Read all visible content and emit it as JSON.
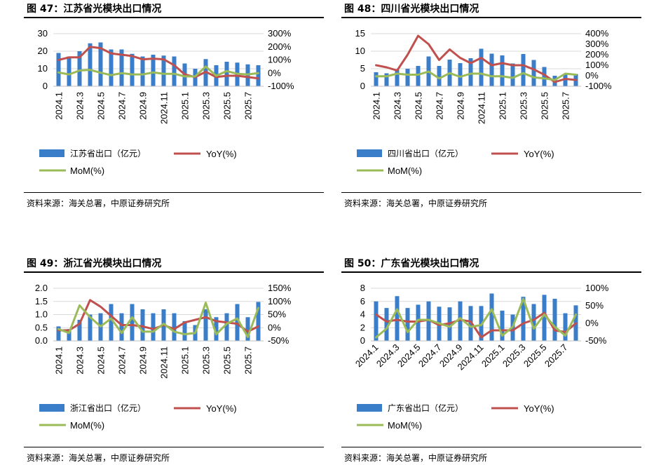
{
  "colors": {
    "bar": "#3a7dc9",
    "yoy": "#c0504d",
    "mom": "#9bbb59"
  },
  "panels": [
    {
      "title": "图 47：江苏省光模块出口情况",
      "source": "资料来源：海关总署，中原证券研究所",
      "legend": {
        "bar": "江苏省出口（亿元）",
        "yoy": "YoY(%)",
        "mom": "MoM(%)"
      }
    },
    {
      "title": "图 48：四川省光模块出口情况",
      "source": "资料来源：海关总署，中原证券研究所",
      "legend": {
        "bar": "四川省出口（亿元）",
        "yoy": "YoY(%)",
        "mom": "MoM(%)"
      }
    },
    {
      "title": "图 49：浙江省光模块出口情况",
      "source": "资料来源：海关总署，中原证券研究所",
      "legend": {
        "bar": "浙江省出口（亿元）",
        "yoy": "YoY(%)",
        "mom": "MoM(%)"
      }
    },
    {
      "title": "图 50：广东省光模块出口情况",
      "source": "资料来源：海关总署，中原证券研究所",
      "legend": {
        "bar": "广东省出口（亿元）",
        "yoy": "YoY(%)",
        "mom": "MoM(%)"
      }
    }
  ],
  "chart_data": [
    {
      "type": "bar+line",
      "title": "图 47：江苏省光模块出口情况",
      "categories": [
        "2024.1",
        "2024.2",
        "2024.3",
        "2024.4",
        "2024.5",
        "2024.6",
        "2024.7",
        "2024.8",
        "2024.9",
        "2024.10",
        "2024.11",
        "2024.12",
        "2025.1",
        "2025.2",
        "2025.3",
        "2025.4",
        "2025.5",
        "2025.6",
        "2025.7",
        "2025.8"
      ],
      "tick_labels": [
        "2024.1",
        "2024.3",
        "2024.5",
        "2024.7",
        "2024.9",
        "2024.11",
        "2025.1",
        "2025.3",
        "2025.5",
        "2025.7"
      ],
      "tick_rotation": -90,
      "left_axis": {
        "ticks": [
          "0",
          "10",
          "20",
          "30"
        ],
        "range": [
          0,
          30
        ]
      },
      "right_axis": {
        "ticks": [
          "-100%",
          "0%",
          "100%",
          "200%",
          "300%"
        ],
        "range": [
          -100,
          300
        ]
      },
      "series": [
        {
          "name": "江苏省出口（亿元）",
          "kind": "bar",
          "axis": "left",
          "values": [
            19,
            17,
            20,
            24.5,
            25,
            21,
            21,
            18.5,
            17,
            18,
            17.5,
            17,
            13,
            10,
            15.5,
            12,
            14,
            13.5,
            12.5,
            12
          ]
        },
        {
          "name": "YoY(%)",
          "kind": "line",
          "axis": "right",
          "values": [
            100,
            120,
            120,
            200,
            190,
            150,
            140,
            130,
            105,
            110,
            105,
            60,
            -10,
            -30,
            10,
            -30,
            -20,
            -20,
            -30,
            -40
          ]
        },
        {
          "name": "MoM(%)",
          "kind": "line",
          "axis": "right",
          "values": [
            5,
            -10,
            20,
            25,
            3,
            -15,
            0,
            -10,
            -10,
            5,
            -5,
            -5,
            -25,
            -25,
            50,
            -20,
            15,
            -5,
            -10,
            0
          ]
        }
      ]
    },
    {
      "type": "bar+line",
      "title": "图 48：四川省光模块出口情况",
      "categories": [
        "2024.1",
        "2024.2",
        "2024.3",
        "2024.4",
        "2024.5",
        "2024.6",
        "2024.7",
        "2024.8",
        "2024.9",
        "2024.10",
        "2024.11",
        "2024.12",
        "2025.1",
        "2025.2",
        "2025.3",
        "2025.4",
        "2025.5",
        "2025.6",
        "2025.7",
        "2025.8"
      ],
      "tick_labels": [
        "2024.1",
        "2024.3",
        "2024.5",
        "2024.7",
        "2024.9",
        "2024.11",
        "2025.1",
        "2025.3",
        "2025.5",
        "2025.7"
      ],
      "tick_rotation": -90,
      "left_axis": {
        "ticks": [
          "0",
          "5",
          "10",
          "15"
        ],
        "range": [
          0,
          15
        ]
      },
      "right_axis": {
        "ticks": [
          "-100%",
          "0%",
          "100%",
          "200%",
          "300%",
          "400%"
        ],
        "range": [
          -100,
          400
        ]
      },
      "series": [
        {
          "name": "四川省出口（亿元）",
          "kind": "bar",
          "axis": "left",
          "values": [
            4,
            3.7,
            4.7,
            5,
            5.8,
            8.5,
            5.8,
            7.6,
            6.6,
            8,
            10.7,
            9.3,
            8.8,
            6.5,
            9.2,
            7.5,
            5.5,
            3,
            3.5,
            3.5
          ]
        },
        {
          "name": "YoY(%)",
          "kind": "line",
          "axis": "right",
          "values": [
            100,
            80,
            50,
            200,
            380,
            300,
            150,
            250,
            170,
            120,
            170,
            100,
            120,
            100,
            100,
            60,
            10,
            -60,
            -30,
            -40
          ]
        },
        {
          "name": "MoM(%)",
          "kind": "line",
          "axis": "right",
          "values": [
            -5,
            -5,
            20,
            10,
            10,
            40,
            -25,
            25,
            -10,
            20,
            20,
            -5,
            -5,
            -20,
            25,
            -15,
            -25,
            -40,
            20,
            10
          ]
        }
      ]
    },
    {
      "type": "bar+line",
      "title": "图 49：浙江省光模块出口情况",
      "categories": [
        "2024.1",
        "2024.2",
        "2024.3",
        "2024.4",
        "2024.5",
        "2024.6",
        "2024.7",
        "2024.8",
        "2024.9",
        "2024.10",
        "2024.11",
        "2024.12",
        "2025.1",
        "2025.2",
        "2025.3",
        "2025.4",
        "2025.5",
        "2025.6",
        "2025.7",
        "2025.8"
      ],
      "tick_labels": [
        "2024.1",
        "2024.3",
        "2024.5",
        "2024.7",
        "2024.9",
        "2024.11",
        "2025.1",
        "2025.3",
        "2025.5",
        "2025.7"
      ],
      "tick_rotation": -90,
      "left_axis": {
        "ticks": [
          "0.0",
          "0.5",
          "1.0",
          "1.5",
          "2.0"
        ],
        "range": [
          0,
          2
        ]
      },
      "right_axis": {
        "ticks": [
          "-50%",
          "0%",
          "50%",
          "100%",
          "150%"
        ],
        "range": [
          -50,
          150
        ]
      },
      "series": [
        {
          "name": "浙江省出口（亿元）",
          "kind": "bar",
          "axis": "left",
          "values": [
            0.55,
            0.45,
            0.8,
            1.0,
            1.05,
            1.4,
            1.05,
            1.4,
            1.2,
            1.05,
            1.2,
            1.05,
            0.75,
            0.6,
            1.2,
            0.9,
            1.05,
            1.4,
            0.9,
            1.48
          ]
        },
        {
          "name": "YoY(%)",
          "kind": "line",
          "axis": "right",
          "values": [
            -10,
            -10,
            15,
            105,
            80,
            45,
            10,
            10,
            5,
            -5,
            10,
            -5,
            20,
            30,
            40,
            25,
            20,
            15,
            -15,
            5
          ]
        },
        {
          "name": "MoM(%)",
          "kind": "line",
          "axis": "right",
          "values": [
            -5,
            -20,
            85,
            40,
            5,
            35,
            -20,
            40,
            -15,
            -15,
            15,
            -15,
            -25,
            -20,
            95,
            -25,
            15,
            35,
            -35,
            75
          ]
        }
      ]
    },
    {
      "type": "bar+line",
      "title": "图 50：广东省光模块出口情况",
      "categories": [
        "2024.1",
        "2024.2",
        "2024.3",
        "2024.4",
        "2024.5",
        "2024.6",
        "2024.7",
        "2024.8",
        "2024.9",
        "2024.10",
        "2024.11",
        "2024.12",
        "2025.1",
        "2025.2",
        "2025.3",
        "2025.4",
        "2025.5",
        "2025.6",
        "2025.7",
        "2025.8"
      ],
      "tick_labels": [
        "2024.1",
        "2024.3",
        "2024.5",
        "2024.7",
        "2024.9",
        "2024.11",
        "2025.1",
        "2025.3",
        "2025.5",
        "2025.7"
      ],
      "tick_rotation": -45,
      "left_axis": {
        "ticks": [
          "0",
          "2",
          "4",
          "6",
          "8"
        ],
        "range": [
          0,
          8
        ]
      },
      "right_axis": {
        "ticks": [
          "-50%",
          "0%",
          "50%",
          "100%"
        ],
        "range": [
          -50,
          100
        ]
      },
      "series": [
        {
          "name": "广东省出口（亿元）",
          "kind": "bar",
          "axis": "left",
          "values": [
            6,
            5,
            6.8,
            5,
            5.5,
            6,
            5.2,
            5.1,
            6,
            5.3,
            5.3,
            7.2,
            4.6,
            4,
            6.7,
            5.6,
            7,
            6.4,
            4.2,
            5.4
          ]
        },
        {
          "name": "YoY(%)",
          "kind": "line",
          "axis": "right",
          "values": [
            25,
            5,
            10,
            5,
            5,
            10,
            -5,
            0,
            10,
            5,
            -40,
            -20,
            -20,
            -20,
            0,
            10,
            30,
            -20,
            -25,
            0
          ]
        },
        {
          "name": "MoM(%)",
          "kind": "line",
          "axis": "right",
          "values": [
            -40,
            -15,
            40,
            -25,
            10,
            10,
            0,
            -10,
            15,
            -10,
            -5,
            40,
            -35,
            -10,
            70,
            -15,
            25,
            -10,
            -35,
            25
          ]
        }
      ]
    }
  ]
}
